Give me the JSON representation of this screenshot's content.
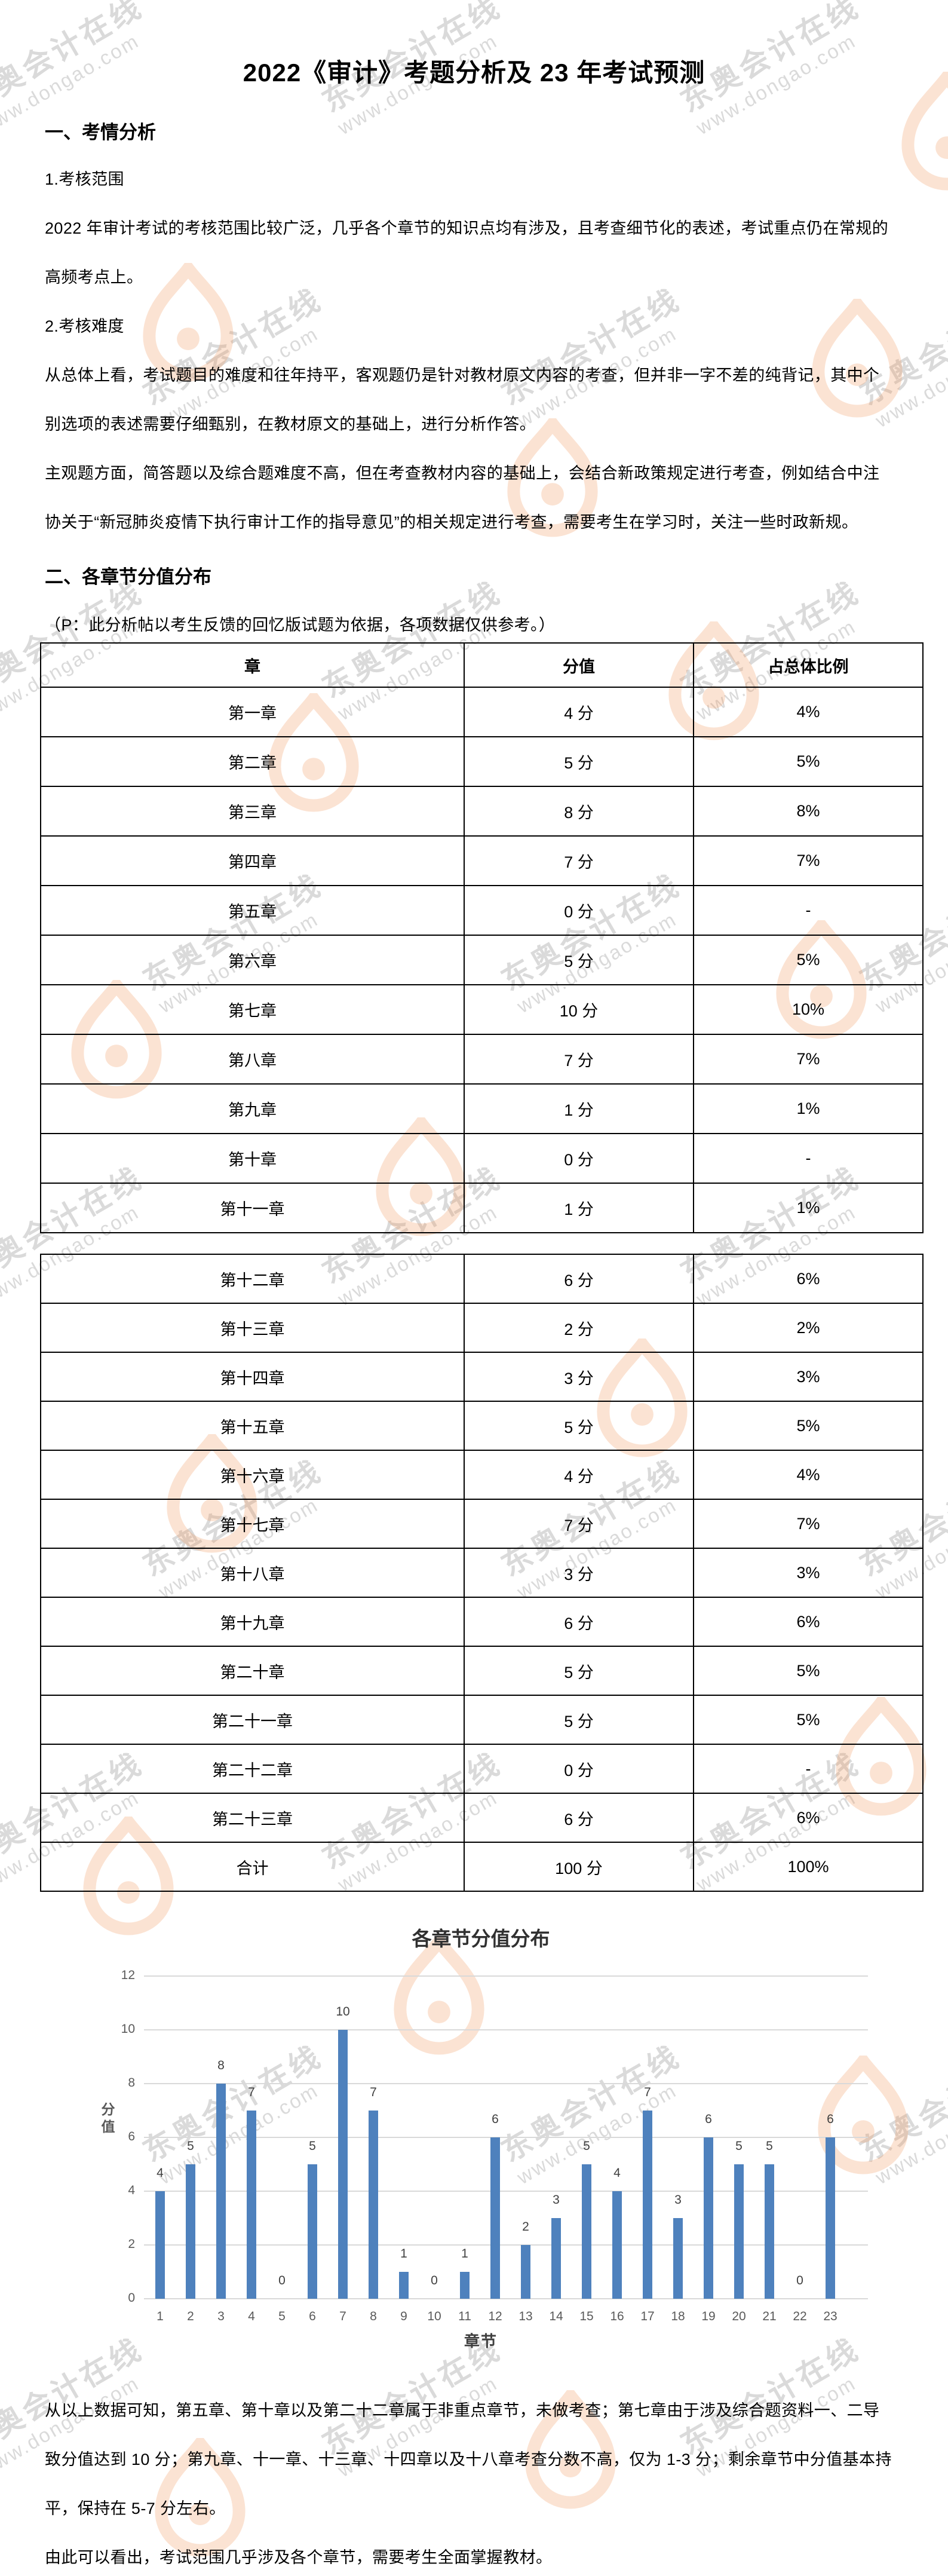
{
  "title": "2022《审计》考题分析及 23 年考试预测",
  "section1": {
    "heading": "一、考情分析",
    "item1": "1.考核范围",
    "p1_line1": "2022 年审计考试的考核范围比较广泛，几乎各个章节的知识点均有涉及，且考查细节化的表述，考试重点仍在常规的",
    "p1_line2": "高频考点上。",
    "item2": "2.考核难度",
    "p2_line1": "从总体上看，考试题目的难度和往年持平，客观题仍是针对教材原文内容的考查，但并非一字不差的纯背记，其中个",
    "p2_line2": "别选项的表述需要仔细甄别，在教材原文的基础上，进行分析作答。",
    "p3_line1": "主观题方面，简答题以及综合题难度不高，但在考查教材内容的基础上，会结合新政策规定进行考查，例如结合中注",
    "p3_line2": "协关于“新冠肺炎疫情下执行审计工作的指导意见”的相关规定进行考查，需要考生在学习时，关注一些时政新规。"
  },
  "section2": {
    "heading": "二、各章节分值分布",
    "note": "（P：此分析帖以考生反馈的回忆版试题为依据，各项数据仅供参考。）"
  },
  "table": {
    "headers": [
      "章",
      "分值",
      "占总体比例"
    ],
    "rows": [
      [
        "第一章",
        "4 分",
        "4%"
      ],
      [
        "第二章",
        "5 分",
        "5%"
      ],
      [
        "第三章",
        "8 分",
        "8%"
      ],
      [
        "第四章",
        "7 分",
        "7%"
      ],
      [
        "第五章",
        "0 分",
        "-"
      ],
      [
        "第六章",
        "5 分",
        "5%"
      ],
      [
        "第七章",
        "10 分",
        "10%"
      ],
      [
        "第八章",
        "7 分",
        "7%"
      ],
      [
        "第九章",
        "1 分",
        "1%"
      ],
      [
        "第十章",
        "0 分",
        "-"
      ],
      [
        "第十一章",
        "1 分",
        "1%"
      ],
      [
        "第十二章",
        "6 分",
        "6%"
      ],
      [
        "第十三章",
        "2 分",
        "2%"
      ],
      [
        "第十四章",
        "3 分",
        "3%"
      ],
      [
        "第十五章",
        "5 分",
        "5%"
      ],
      [
        "第十六章",
        "4 分",
        "4%"
      ],
      [
        "第十七章",
        "7 分",
        "7%"
      ],
      [
        "第十八章",
        "3 分",
        "3%"
      ],
      [
        "第十九章",
        "6 分",
        "6%"
      ],
      [
        "第二十章",
        "5 分",
        "5%"
      ],
      [
        "第二十一章",
        "5 分",
        "5%"
      ],
      [
        "第二十二章",
        "0 分",
        "-"
      ],
      [
        "第二十三章",
        "6 分",
        "6%"
      ],
      [
        "合计",
        "100 分",
        "100%"
      ]
    ],
    "rows_in_first_segment": 11
  },
  "chart_data": {
    "type": "bar",
    "title": "各章节分值分布",
    "categories": [
      "1",
      "2",
      "3",
      "4",
      "5",
      "6",
      "7",
      "8",
      "9",
      "10",
      "11",
      "12",
      "13",
      "14",
      "15",
      "16",
      "17",
      "18",
      "19",
      "20",
      "21",
      "22",
      "23"
    ],
    "values": [
      4,
      5,
      8,
      7,
      0,
      5,
      10,
      7,
      1,
      0,
      1,
      6,
      2,
      3,
      5,
      4,
      7,
      3,
      6,
      5,
      5,
      0,
      6
    ],
    "xlabel": "章节",
    "ylabel": "分值",
    "ylim": [
      0,
      12
    ],
    "ytick_step": 2,
    "grid": true,
    "legend_position": "none",
    "data_labels": true
  },
  "conclusion": {
    "line1": "从以上数据可知，第五章、第十章以及第二十二章属于非重点章节，未做考查；第七章由于涉及综合题资料一、二导",
    "line2": "致分值达到 10 分；第九章、十一章、十三章、十四章以及十八章考查分数不高，仅为 1-3 分；剩余章节中分值基本持",
    "line3": "平，保持在 5-7 分左右。",
    "line4": "由此可以看出，考试范围几乎涉及各个章节，需要考生全面掌握教材。"
  },
  "watermark": {
    "line1": "东奥会计在线",
    "line2": "www.dongao.com"
  },
  "colors": {
    "bar": "#4E81BD",
    "gridline": "#D9D9D9",
    "axis_text": "#595959",
    "table_border": "#000000",
    "watermark_text": "#DADADA",
    "watermark_logo": "#F2965A"
  }
}
